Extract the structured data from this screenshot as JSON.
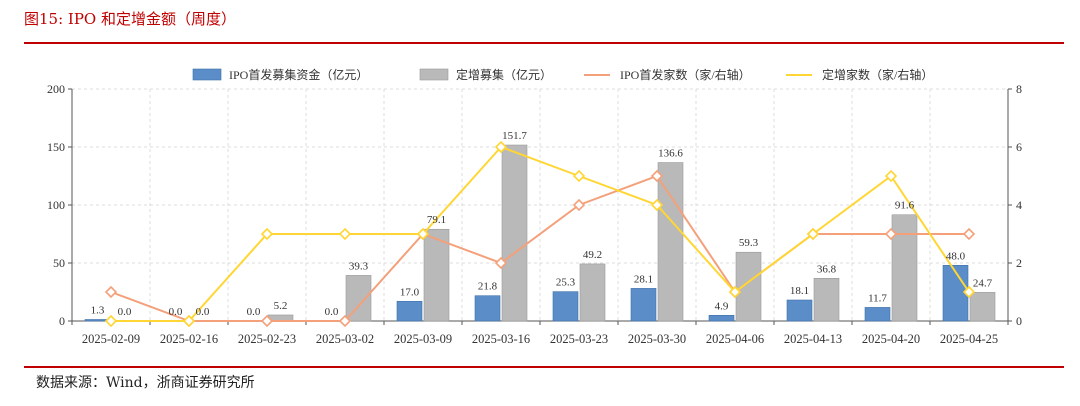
{
  "figure": {
    "title": "图15:  IPO 和定增金额（周度）",
    "source": "数据来源：Wind，浙商证券研究所"
  },
  "colors": {
    "ipo_bar": "#5b8ec9",
    "ipo_bar_stroke": "#3f6fa8",
    "pp_bar": "#b9b9b9",
    "pp_bar_stroke": "#9a9a9a",
    "ipo_line": "#f4a07a",
    "pp_line": "#ffd633",
    "accent": "#c00000"
  },
  "chart_data": {
    "type": "bar",
    "categories": [
      "2025-02-09",
      "2025-02-16",
      "2025-02-23",
      "2025-03-02",
      "2025-03-09",
      "2025-03-16",
      "2025-03-23",
      "2025-03-30",
      "2025-04-06",
      "2025-04-13",
      "2025-04-20",
      "2025-04-25"
    ],
    "series": [
      {
        "name": "IPO首发募集资金（亿元）",
        "kind": "bar",
        "axis": "left",
        "values": [
          1.3,
          0.0,
          0.0,
          0.0,
          17.0,
          21.8,
          25.3,
          28.1,
          4.9,
          18.1,
          11.7,
          48.0
        ],
        "labels": [
          "1.3",
          "0.0",
          "0.0",
          "0.0",
          "17.0",
          "21.8",
          "25.3",
          "28.1",
          "4.9",
          "18.1",
          "11.7",
          "48.0"
        ]
      },
      {
        "name": "定增募集（亿元）",
        "kind": "bar",
        "axis": "left",
        "values": [
          0.0,
          0.0,
          5.2,
          39.3,
          79.1,
          151.7,
          49.2,
          136.6,
          59.3,
          36.8,
          91.6,
          24.7
        ],
        "labels": [
          "0.0",
          "0.0",
          "5.2",
          "39.3",
          "79.1",
          "151.7",
          "49.2",
          "136.6",
          "59.3",
          "36.8",
          "91.6",
          "24.7"
        ]
      },
      {
        "name": "IPO首发家数（家/右轴）",
        "kind": "line",
        "axis": "right",
        "values": [
          1,
          0,
          0,
          0,
          3,
          2,
          4,
          5,
          1,
          3,
          3,
          3
        ]
      },
      {
        "name": "定增家数（家/右轴）",
        "kind": "line",
        "axis": "right",
        "values": [
          0,
          0,
          3,
          3,
          3,
          6,
          5,
          4,
          1,
          3,
          5,
          1
        ]
      }
    ],
    "yleft": {
      "min": 0,
      "max": 200,
      "ticks": [
        "0",
        "50",
        "100",
        "150",
        "200"
      ]
    },
    "yright": {
      "min": 0,
      "max": 8,
      "ticks": [
        "0",
        "2",
        "4",
        "6",
        "8"
      ]
    },
    "grid": true,
    "legend_position": "top"
  }
}
